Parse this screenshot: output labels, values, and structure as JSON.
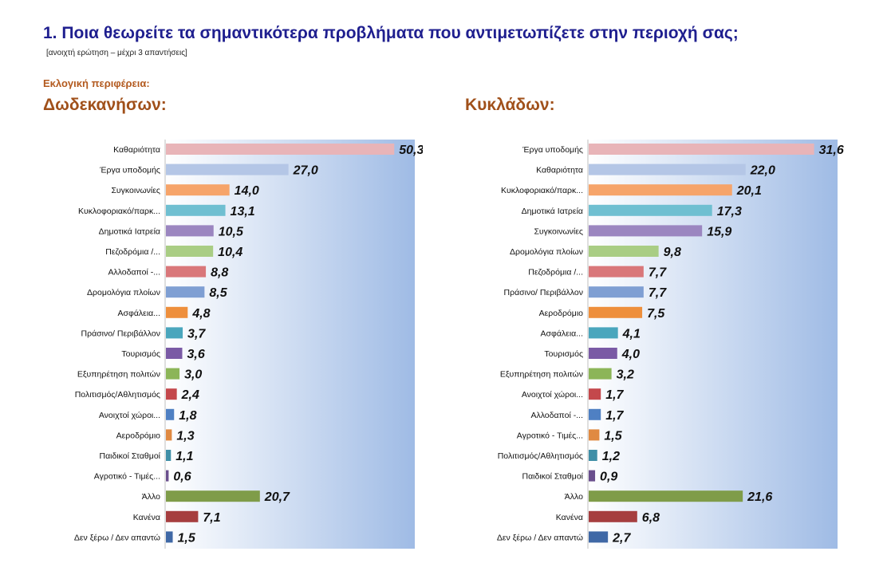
{
  "page": {
    "title": "1. Ποια θεωρείτε τα σημαντικότερα προβλήματα που αντιμετωπίζετε στην περιοχή σας;",
    "subtitle": "[ανοιχτή ερώτηση – μέχρι 3 απαντήσεις]",
    "region_label": "Εκλογική περιφέρεια:"
  },
  "chart_data": [
    {
      "type": "bar",
      "orientation": "horizontal",
      "title": "Δωδεκανήσων:",
      "xlim": [
        0,
        55
      ],
      "grid": false,
      "categories": [
        "Καθαριότητα",
        "Έργα υποδομής",
        "Συγκοινωνίες",
        "Κυκλοφοριακό/παρκ...",
        "Δημοτικά Ιατρεία",
        "Πεζοδρόμια /...",
        "Αλλοδαποί -...",
        "Δρομολόγια πλοίων",
        "Ασφάλεια...",
        "Πράσινο/ Περιβάλλον",
        "Τουρισμός",
        "Εξυπηρέτηση πολιτών",
        "Πολιτισμός/Αθλητισμός",
        "Ανοιχτοί χώροι...",
        "Αεροδρόμιο",
        "Παιδικοί Σταθμοί",
        "Αγροτικό - Τιμές...",
        "Άλλο",
        "Κανένα",
        "Δεν ξέρω / Δεν απαντώ"
      ],
      "values": [
        50.3,
        27.0,
        14.0,
        13.1,
        10.5,
        10.4,
        8.8,
        8.5,
        4.8,
        3.7,
        3.6,
        3.0,
        2.4,
        1.8,
        1.3,
        1.1,
        0.6,
        20.7,
        7.1,
        1.5
      ],
      "value_labels": [
        "50,3",
        "27,0",
        "14,0",
        "13,1",
        "10,5",
        "10,4",
        "8,8",
        "8,5",
        "4,8",
        "3,7",
        "3,6",
        "3,0",
        "2,4",
        "1,8",
        "1,3",
        "1,1",
        "0,6",
        "20,7",
        "7,1",
        "1,5"
      ],
      "colors": [
        "#e8b4b8",
        "#b4c6e6",
        "#f6a46a",
        "#6fbfd1",
        "#9b86c0",
        "#a9cd84",
        "#d9777a",
        "#7f9fd3",
        "#ee8f3c",
        "#4aa6bd",
        "#7a5aa5",
        "#8cb558",
        "#c4484c",
        "#4f80c3",
        "#e08a42",
        "#3f8fa7",
        "#6a4f8d",
        "#7f9c49",
        "#a63e3f",
        "#3f68a6"
      ]
    },
    {
      "type": "bar",
      "orientation": "horizontal",
      "title": "Κυκλάδων:",
      "xlim": [
        0,
        35
      ],
      "grid": false,
      "categories": [
        "Έργα υποδομής",
        "Καθαριότητα",
        "Κυκλοφοριακό/παρκ...",
        "Δημοτικά Ιατρεία",
        "Συγκοινωνίες",
        "Δρομολόγια πλοίων",
        "Πεζοδρόμια /...",
        "Πράσινο/ Περιβάλλον",
        "Αεροδρόμιο",
        "Ασφάλεια...",
        "Τουρισμός",
        "Εξυπηρέτηση πολιτών",
        "Ανοιχτοί χώροι...",
        "Αλλοδαποί -...",
        "Αγροτικό - Τιμές...",
        "Πολιτισμός/Αθλητισμός",
        "Παιδικοί Σταθμοί",
        "Άλλο",
        "Κανένα",
        "Δεν ξέρω / Δεν απαντώ"
      ],
      "values": [
        31.6,
        22.0,
        20.1,
        17.3,
        15.9,
        9.8,
        7.7,
        7.7,
        7.5,
        4.1,
        4.0,
        3.2,
        1.7,
        1.7,
        1.5,
        1.2,
        0.9,
        21.6,
        6.8,
        2.7
      ],
      "value_labels": [
        "31,6",
        "22,0",
        "20,1",
        "17,3",
        "15,9",
        "9,8",
        "7,7",
        "7,7",
        "7,5",
        "4,1",
        "4,0",
        "3,2",
        "1,7",
        "1,7",
        "1,5",
        "1,2",
        "0,9",
        "21,6",
        "6,8",
        "2,7"
      ],
      "colors": [
        "#e8b4b8",
        "#b4c6e6",
        "#f6a46a",
        "#6fbfd1",
        "#9b86c0",
        "#a9cd84",
        "#d9777a",
        "#7f9fd3",
        "#ee8f3c",
        "#4aa6bd",
        "#7a5aa5",
        "#8cb558",
        "#c4484c",
        "#4f80c3",
        "#e08a42",
        "#3f8fa7",
        "#6a4f8d",
        "#7f9c49",
        "#a63e3f",
        "#3f68a6"
      ]
    }
  ]
}
